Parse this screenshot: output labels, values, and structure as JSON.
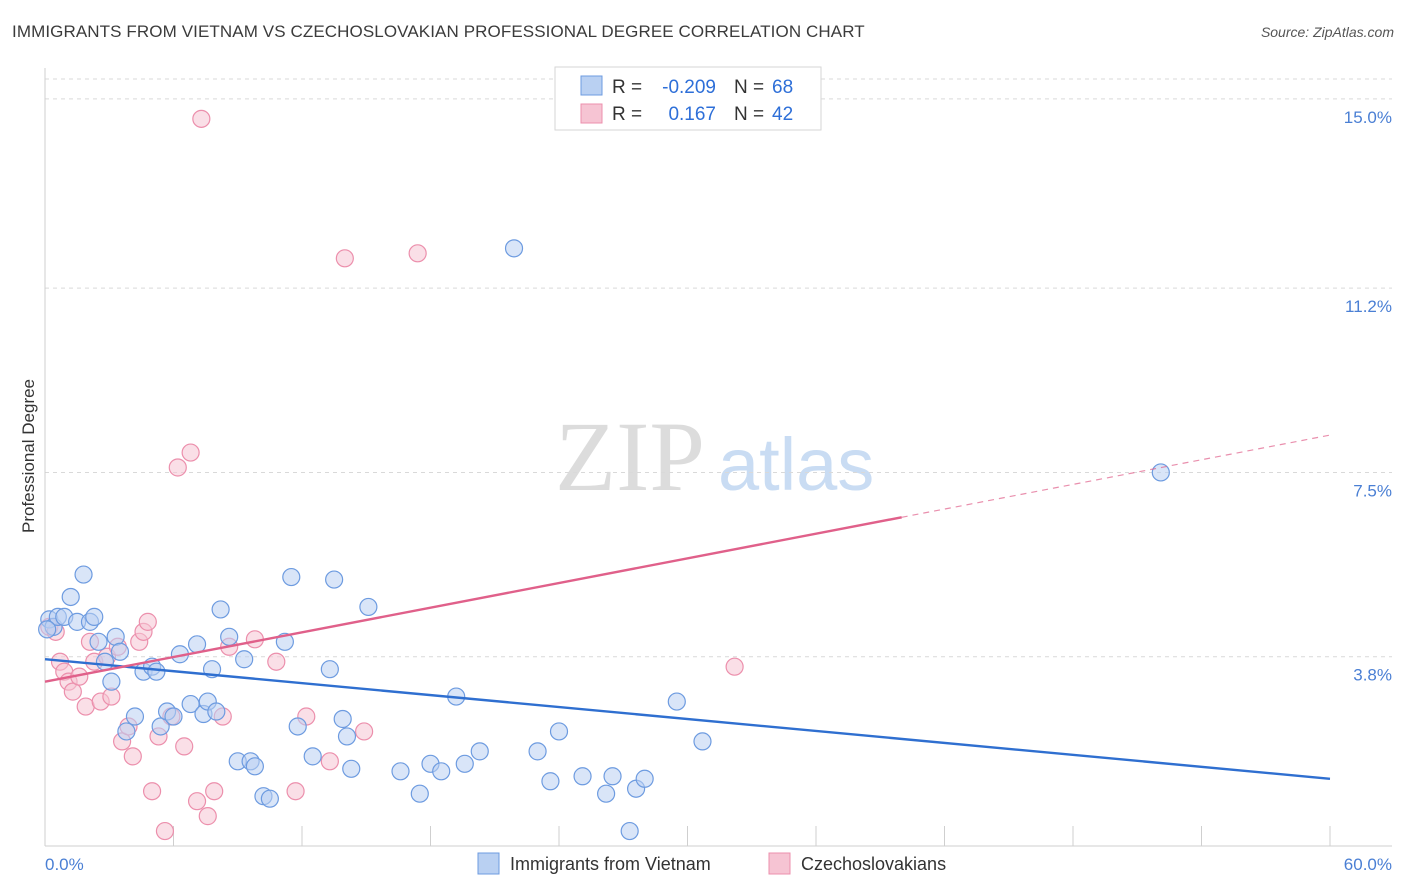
{
  "header": {
    "title": "IMMIGRANTS FROM VIETNAM VS CZECHOSLOVAKIAN PROFESSIONAL DEGREE CORRELATION CHART",
    "source": "Source: ZipAtlas.com"
  },
  "watermark": {
    "zip": "ZIP",
    "atlas": "atlas"
  },
  "colors": {
    "blue": "#2f6fd0",
    "blue_fill": "#b9d0f2",
    "blue_stroke": "#6d9be0",
    "pink": "#e0608a",
    "pink_fill": "#f6c4d3",
    "pink_stroke": "#ec8fac",
    "tick": "#4a7fd4",
    "grid": "#d9d9d9"
  },
  "chart_data": {
    "type": "scatter",
    "title": "IMMIGRANTS FROM VIETNAM VS CZECHOSLOVAKIAN PROFESSIONAL DEGREE CORRELATION CHART",
    "xlabel": "",
    "ylabel": "Professional Degree",
    "xlim": [
      0,
      60
    ],
    "ylim": [
      0,
      15.4
    ],
    "x_tick_labels": {
      "min": "0.0%",
      "max": "60.0%"
    },
    "y_ticks": [
      {
        "value": 3.8,
        "label": "3.8%"
      },
      {
        "value": 7.5,
        "label": "7.5%"
      },
      {
        "value": 11.2,
        "label": "11.2%"
      },
      {
        "value": 15.0,
        "label": "15.0%"
      }
    ],
    "legend": [
      {
        "name": "Immigrants from Vietnam",
        "r_label": "R =",
        "r": "-0.209",
        "n_label": "N =",
        "n": "68",
        "color": "blue"
      },
      {
        "name": "Czechoslovakians",
        "r_label": "R =",
        "r": "0.167",
        "n_label": "N =",
        "n": "42",
        "color": "pink"
      }
    ],
    "series": [
      {
        "name": "Immigrants from Vietnam",
        "color": "blue",
        "trend": {
          "x0": 0,
          "y0": 3.75,
          "x1": 60,
          "y1": 1.35
        },
        "points": [
          [
            0.2,
            4.55
          ],
          [
            0.4,
            4.4
          ],
          [
            0.6,
            4.6
          ],
          [
            0.9,
            4.6
          ],
          [
            1.2,
            5.0
          ],
          [
            1.5,
            4.5
          ],
          [
            1.8,
            5.45
          ],
          [
            2.1,
            4.5
          ],
          [
            2.3,
            4.6
          ],
          [
            2.5,
            4.1
          ],
          [
            2.8,
            3.7
          ],
          [
            3.1,
            3.3
          ],
          [
            3.3,
            4.2
          ],
          [
            3.5,
            3.9
          ],
          [
            3.8,
            2.3
          ],
          [
            4.2,
            2.6
          ],
          [
            4.6,
            3.5
          ],
          [
            5.0,
            3.6
          ],
          [
            5.2,
            3.5
          ],
          [
            5.4,
            2.4
          ],
          [
            5.7,
            2.7
          ],
          [
            6.0,
            2.6
          ],
          [
            6.3,
            3.85
          ],
          [
            6.8,
            2.85
          ],
          [
            7.1,
            4.05
          ],
          [
            7.4,
            2.65
          ],
          [
            7.6,
            2.9
          ],
          [
            7.8,
            3.55
          ],
          [
            8.0,
            2.7
          ],
          [
            8.2,
            4.75
          ],
          [
            8.6,
            4.2
          ],
          [
            9.0,
            1.7
          ],
          [
            9.3,
            3.75
          ],
          [
            9.6,
            1.7
          ],
          [
            9.8,
            1.6
          ],
          [
            10.2,
            1.0
          ],
          [
            10.5,
            0.95
          ],
          [
            11.2,
            4.1
          ],
          [
            11.5,
            5.4
          ],
          [
            11.8,
            2.4
          ],
          [
            12.5,
            1.8
          ],
          [
            13.3,
            3.55
          ],
          [
            13.5,
            5.35
          ],
          [
            13.9,
            2.55
          ],
          [
            14.1,
            2.2
          ],
          [
            14.3,
            1.55
          ],
          [
            15.1,
            4.8
          ],
          [
            16.6,
            1.5
          ],
          [
            17.5,
            1.05
          ],
          [
            18.0,
            1.65
          ],
          [
            18.5,
            1.5
          ],
          [
            19.2,
            3.0
          ],
          [
            19.6,
            1.65
          ],
          [
            20.3,
            1.9
          ],
          [
            21.9,
            12.0
          ],
          [
            23.0,
            1.9
          ],
          [
            23.6,
            1.3
          ],
          [
            24.0,
            2.3
          ],
          [
            25.1,
            1.4
          ],
          [
            26.2,
            1.05
          ],
          [
            26.5,
            1.4
          ],
          [
            27.3,
            0.3
          ],
          [
            27.6,
            1.15
          ],
          [
            28.0,
            1.35
          ],
          [
            29.5,
            2.9
          ],
          [
            30.7,
            2.1
          ],
          [
            52.1,
            7.5
          ],
          [
            0.1,
            4.35
          ]
        ]
      },
      {
        "name": "Czechoslovakians",
        "color": "pink",
        "trend": {
          "x0": 0,
          "y0": 3.3,
          "x1": 40,
          "y1": 6.6,
          "dash_to_x": 60,
          "dash_to_y": 8.25
        },
        "points": [
          [
            0.2,
            4.4
          ],
          [
            0.5,
            4.3
          ],
          [
            0.7,
            3.7
          ],
          [
            0.9,
            3.5
          ],
          [
            1.1,
            3.3
          ],
          [
            1.3,
            3.1
          ],
          [
            1.6,
            3.4
          ],
          [
            1.9,
            2.8
          ],
          [
            2.1,
            4.1
          ],
          [
            2.3,
            3.7
          ],
          [
            2.6,
            2.9
          ],
          [
            2.9,
            3.8
          ],
          [
            3.1,
            3.0
          ],
          [
            3.4,
            4.0
          ],
          [
            3.6,
            2.1
          ],
          [
            3.9,
            2.4
          ],
          [
            4.1,
            1.8
          ],
          [
            4.4,
            4.1
          ],
          [
            4.6,
            4.3
          ],
          [
            4.8,
            4.5
          ],
          [
            5.0,
            1.1
          ],
          [
            5.3,
            2.2
          ],
          [
            5.6,
            0.3
          ],
          [
            5.9,
            2.6
          ],
          [
            6.2,
            7.6
          ],
          [
            6.5,
            2.0
          ],
          [
            6.8,
            7.9
          ],
          [
            7.1,
            0.9
          ],
          [
            7.3,
            14.6
          ],
          [
            7.6,
            0.6
          ],
          [
            7.9,
            1.1
          ],
          [
            8.3,
            2.6
          ],
          [
            8.6,
            4.0
          ],
          [
            9.8,
            4.15
          ],
          [
            10.8,
            3.7
          ],
          [
            11.7,
            1.1
          ],
          [
            12.2,
            2.6
          ],
          [
            13.3,
            1.7
          ],
          [
            14.0,
            11.8
          ],
          [
            14.9,
            2.3
          ],
          [
            17.4,
            11.9
          ],
          [
            32.2,
            3.6
          ]
        ]
      }
    ]
  }
}
